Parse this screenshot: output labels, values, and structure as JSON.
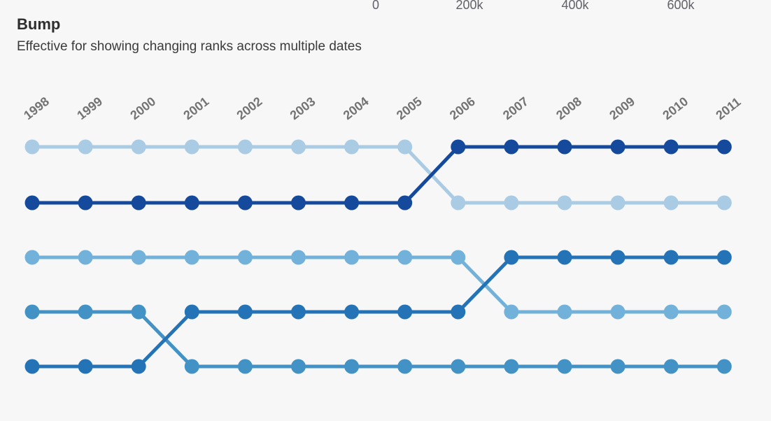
{
  "top_axis_fragment": {
    "color": "#616168",
    "labels": [
      {
        "text": "0",
        "x": 537
      },
      {
        "text": "200k",
        "x": 671
      },
      {
        "text": "400k",
        "x": 822
      },
      {
        "text": "600k",
        "x": 973
      }
    ]
  },
  "chart_data": {
    "type": "bump",
    "title": "Bump",
    "subtitle": "Effective for showing changing ranks across multiple dates",
    "x": [
      1998,
      1999,
      2000,
      2001,
      2002,
      2003,
      2004,
      2005,
      2006,
      2007,
      2008,
      2009,
      2010,
      2011
    ],
    "y_encoding": "rank (1 = top row, 5 = bottom row)",
    "legend": "none",
    "grid": false,
    "series": [
      {
        "name": "light-blue",
        "color": "#a9cbe4",
        "ranks": [
          1,
          1,
          1,
          1,
          1,
          1,
          1,
          1,
          2,
          2,
          2,
          2,
          2,
          2
        ]
      },
      {
        "name": "navy",
        "color": "#14499c",
        "ranks": [
          2,
          2,
          2,
          2,
          2,
          2,
          2,
          2,
          1,
          1,
          1,
          1,
          1,
          1
        ]
      },
      {
        "name": "sky-blue",
        "color": "#72b1da",
        "ranks": [
          3,
          3,
          3,
          3,
          3,
          3,
          3,
          3,
          3,
          4,
          4,
          4,
          4,
          4
        ]
      },
      {
        "name": "medium-blue",
        "color": "#4292c6",
        "ranks": [
          4,
          4,
          4,
          5,
          5,
          5,
          5,
          5,
          5,
          5,
          5,
          5,
          5,
          5
        ]
      },
      {
        "name": "strong-blue",
        "color": "#2473b6",
        "ranks": [
          5,
          5,
          5,
          4,
          4,
          4,
          4,
          4,
          4,
          3,
          3,
          3,
          3,
          3
        ]
      }
    ],
    "layout": {
      "col_start_x": 46,
      "col_step": 76.1,
      "row_ys": [
        210,
        290,
        368,
        446,
        524
      ],
      "dot_radius": 10.5,
      "line_width": 5,
      "label_y": 172,
      "label_dx": -6,
      "label_angle": -38
    }
  }
}
